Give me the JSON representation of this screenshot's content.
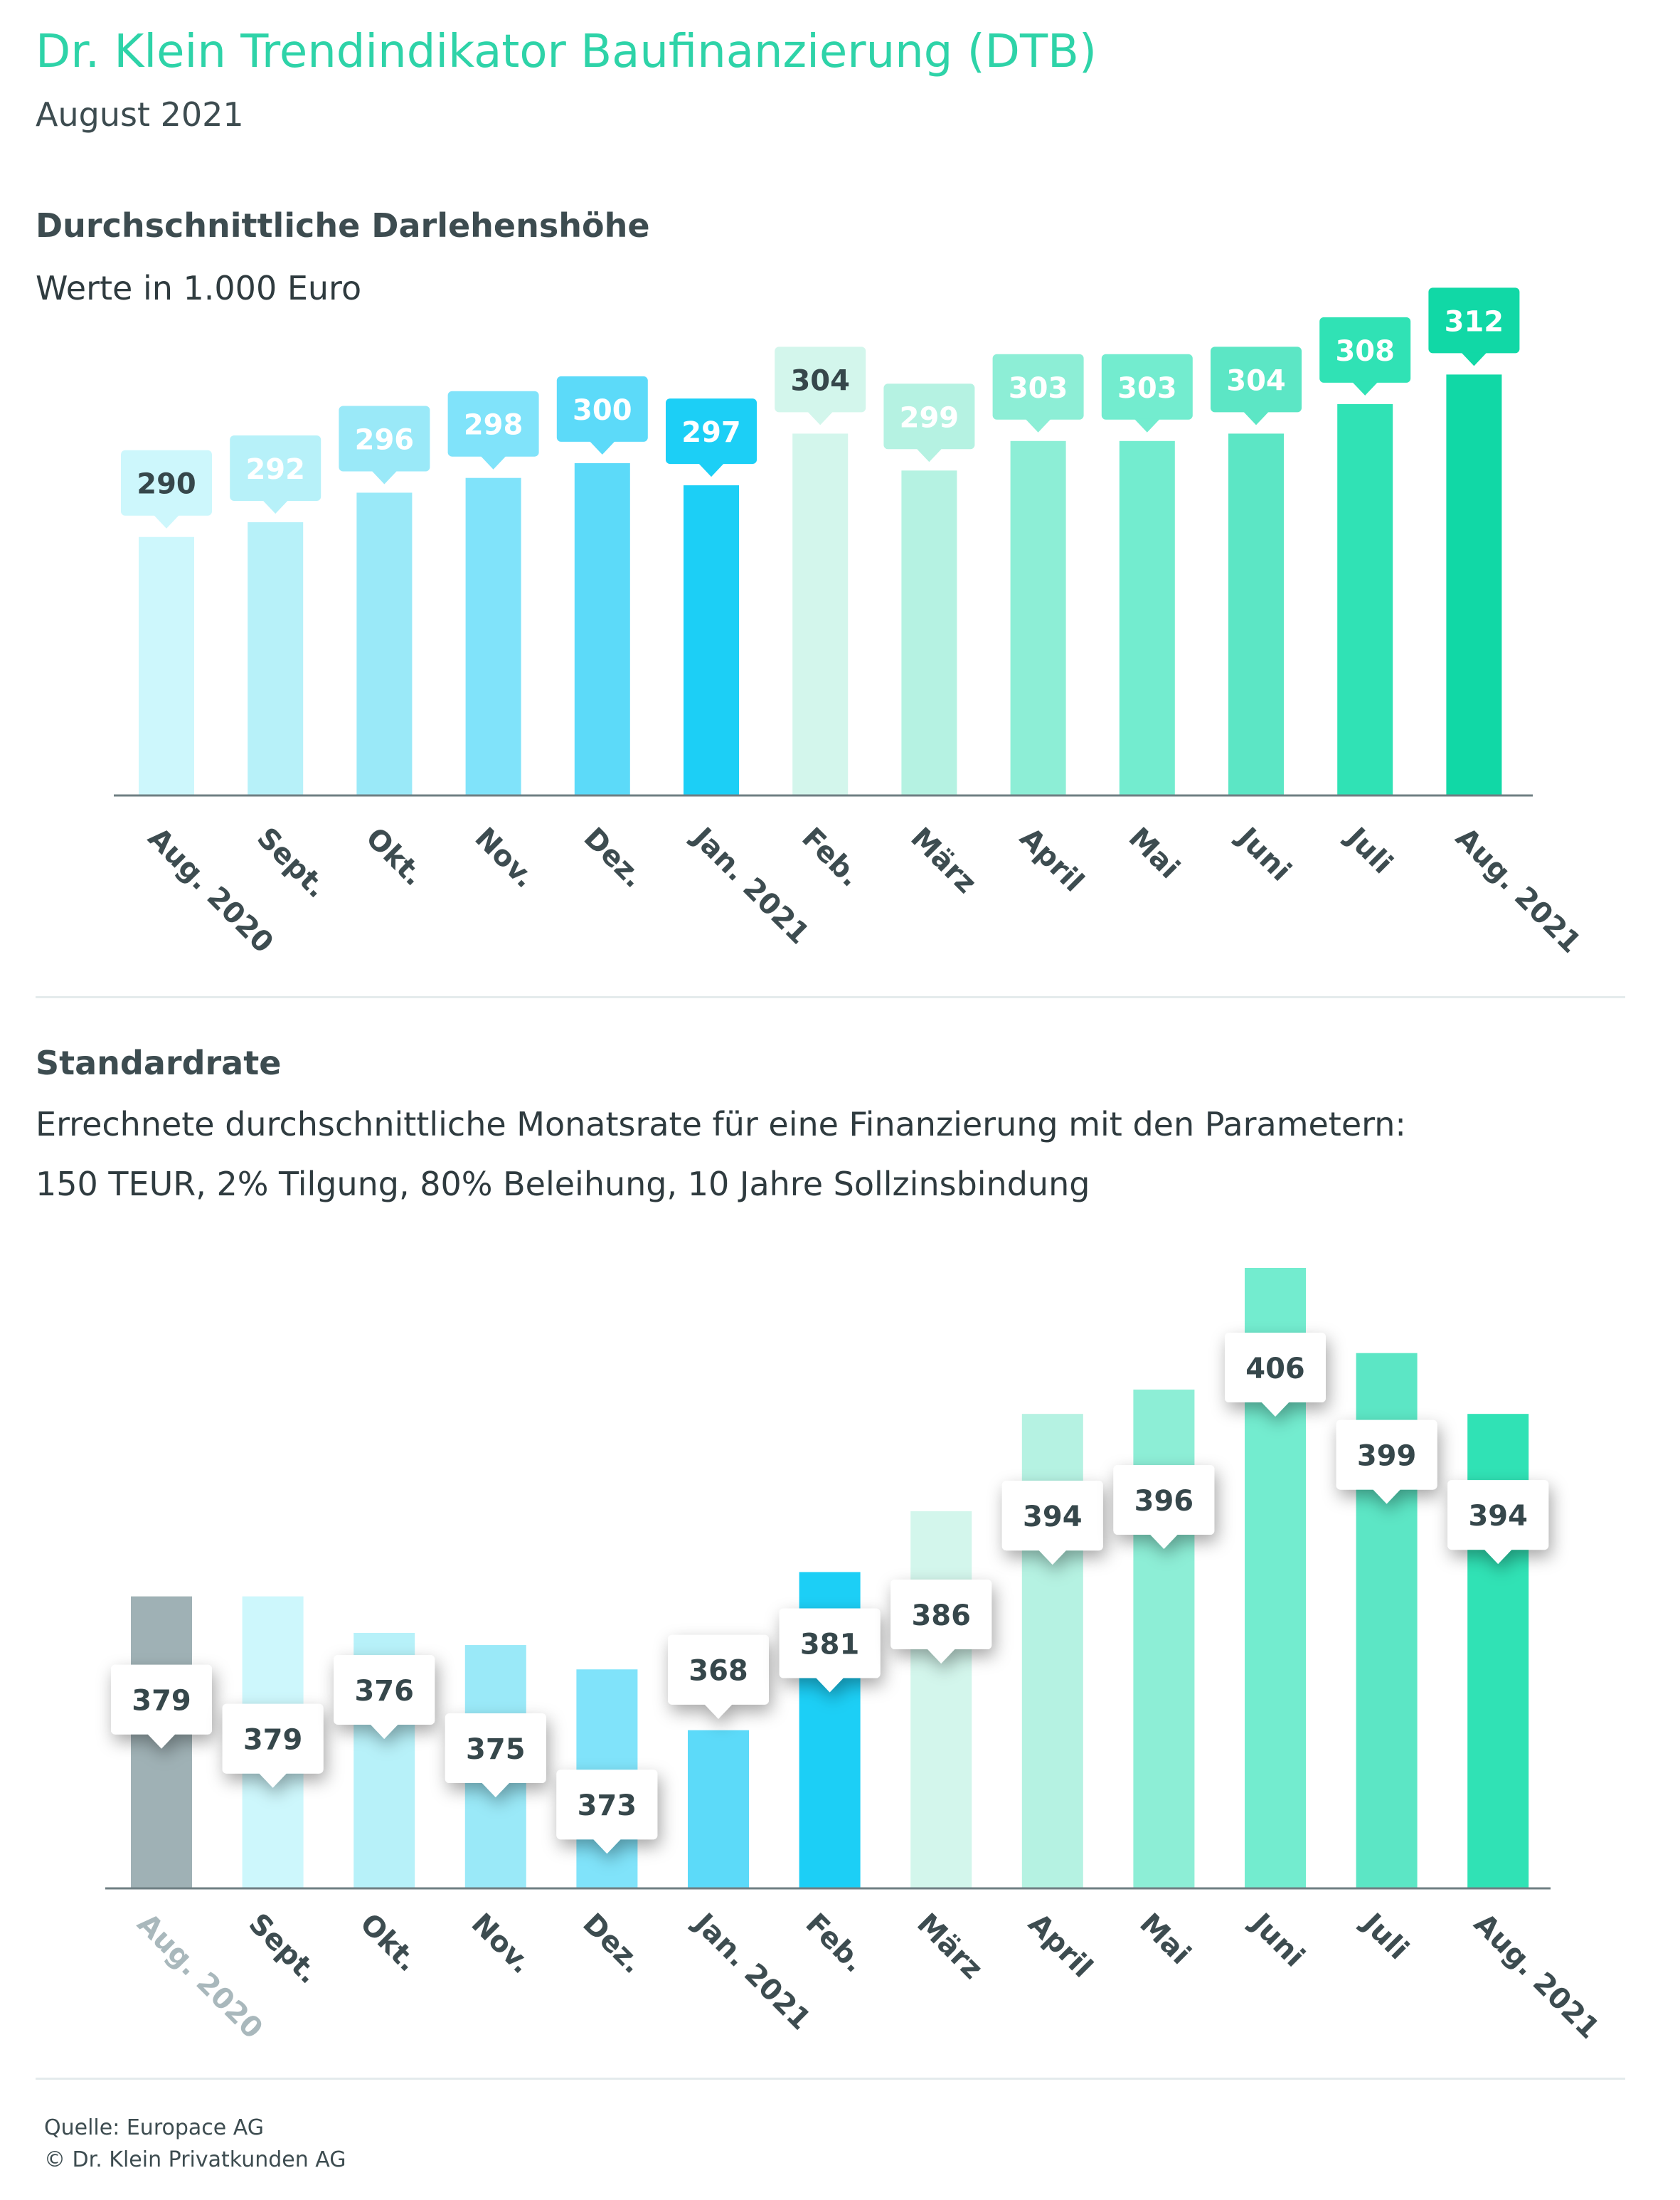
{
  "header": {
    "title": "Dr. Klein Trendindikator Baufinanzierung (DTB)",
    "date": "August 2021"
  },
  "section1": {
    "heading": "Durchschnittliche Darlehenshöhe",
    "unit": "Werte in 1.000 Euro"
  },
  "section2": {
    "heading": "Standardrate",
    "desc1": "Errechnete durchschnittliche Monatsrate für eine Finanzierung mit den Parametern:",
    "desc2": "150 TEUR, 2% Tilgung, 80% Beleihung, 10 Jahre Sollzinsbindung"
  },
  "footer": {
    "source": "Quelle: Europace AG",
    "copyright": "© Dr. Klein Privatkunden AG"
  },
  "colors": {
    "title": "#2ed3a8",
    "text": "#3d4c50",
    "axis": "#6f7f83",
    "bars": [
      "#cdf7fc",
      "#b7f1f9",
      "#9ae9f8",
      "#80e3fa",
      "#5cdaf9",
      "#1ccff6",
      "#d3f6ec",
      "#b5f2e2",
      "#8deed6",
      "#73eccf",
      "#5ce6c5",
      "#30e2b5",
      "#11d8a6"
    ],
    "bars2": [
      "#9fb1b5",
      "#cdf7fc",
      "#b7f1f9",
      "#9ae9f8",
      "#80e3fa",
      "#5cdaf9",
      "#1ccff6",
      "#d3f6ec",
      "#b5f2e2",
      "#8deed6",
      "#73eccf",
      "#5ce6c5",
      "#30e2b5",
      "#11d8a6"
    ]
  },
  "chart_data": [
    {
      "type": "bar",
      "title": "Durchschnittliche Darlehenshöhe",
      "subtitle": "Werte in 1.000 Euro",
      "categories": [
        "Aug. 2020",
        "Sept.",
        "Okt.",
        "Nov.",
        "Dez.",
        "Jan. 2021",
        "Feb.",
        "März",
        "April",
        "Mai",
        "Juni",
        "Juli",
        "Aug. 2021"
      ],
      "values": [
        290,
        292,
        296,
        298,
        300,
        297,
        304,
        299,
        303,
        303,
        304,
        308,
        312
      ],
      "ylim": [
        255,
        313
      ],
      "grid": false,
      "data_labels": true
    },
    {
      "type": "bar",
      "title": "Standardrate",
      "subtitle": "Errechnete durchschnittliche Monatsrate für eine Finanzierung mit den Parametern: 150 TEUR, 2% Tilgung, 80% Beleihung, 10 Jahre Sollzinsbindung",
      "categories": [
        "Aug. 2020",
        "Sept.",
        "Okt.",
        "Nov.",
        "Dez.",
        "Jan. 2021",
        "Feb.",
        "März",
        "April",
        "Mai",
        "Juni",
        "Juli",
        "Aug. 2021"
      ],
      "values": [
        379,
        379,
        376,
        375,
        373,
        368,
        381,
        386,
        394,
        396,
        406,
        399,
        394
      ],
      "ylim": [
        355,
        406
      ],
      "grid": false,
      "data_labels": true
    }
  ]
}
